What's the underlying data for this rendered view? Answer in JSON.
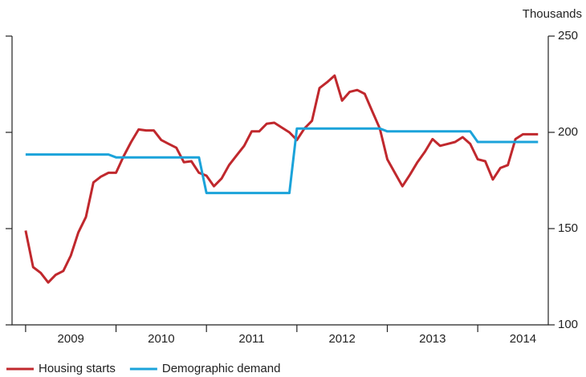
{
  "chart_data": {
    "type": "line",
    "ylabel": "Thousands",
    "x": [
      2009,
      2009.083,
      2009.167,
      2009.25,
      2009.333,
      2009.417,
      2009.5,
      2009.583,
      2009.667,
      2009.75,
      2009.833,
      2009.917,
      2010,
      2010.083,
      2010.167,
      2010.25,
      2010.333,
      2010.417,
      2010.5,
      2010.583,
      2010.667,
      2010.75,
      2010.833,
      2010.917,
      2011,
      2011.083,
      2011.167,
      2011.25,
      2011.333,
      2011.417,
      2011.5,
      2011.583,
      2011.667,
      2011.75,
      2011.833,
      2011.917,
      2012,
      2012.083,
      2012.167,
      2012.25,
      2012.333,
      2012.417,
      2012.5,
      2012.583,
      2012.667,
      2012.75,
      2012.833,
      2012.917,
      2013,
      2013.083,
      2013.167,
      2013.25,
      2013.333,
      2013.417,
      2013.5,
      2013.583,
      2013.667,
      2013.75,
      2013.833,
      2013.917,
      2014,
      2014.083,
      2014.167,
      2014.25,
      2014.333,
      2014.417,
      2014.5,
      2014.583,
      2014.667
    ],
    "series": [
      {
        "name": "Housing starts",
        "color": "#c0282d",
        "values": [
          149,
          130,
          127,
          122,
          126,
          128,
          136,
          148,
          156,
          174,
          177,
          179,
          179,
          187.5,
          195,
          201.5,
          201,
          201,
          196,
          194,
          192,
          184.5,
          185,
          179,
          177.5,
          172,
          176,
          183,
          188,
          193,
          200.5,
          200.5,
          204.5,
          205,
          202.5,
          200,
          196,
          202,
          206,
          223,
          226,
          229.5,
          216.5,
          221,
          222,
          220,
          211,
          202,
          186,
          179,
          172,
          178,
          184.5,
          190,
          196.5,
          193,
          194,
          195,
          197.5,
          194,
          186,
          185,
          175.5,
          181.5,
          183,
          196.5,
          199,
          199,
          199
        ]
      },
      {
        "name": "Demographic demand",
        "color": "#1ba3da",
        "values": [
          188.5,
          188.5,
          188.5,
          188.5,
          188.5,
          188.5,
          188.5,
          188.5,
          188.5,
          188.5,
          188.5,
          188.5,
          187,
          187,
          187,
          187,
          187,
          187,
          187,
          187,
          187,
          187,
          187,
          187,
          168.5,
          168.5,
          168.5,
          168.5,
          168.5,
          168.5,
          168.5,
          168.5,
          168.5,
          168.5,
          168.5,
          168.5,
          202,
          202,
          202,
          202,
          202,
          202,
          202,
          202,
          202,
          202,
          202,
          202,
          200.5,
          200.5,
          200.5,
          200.5,
          200.5,
          200.5,
          200.5,
          200.5,
          200.5,
          200.5,
          200.5,
          200.5,
          195,
          195,
          195,
          195,
          195,
          195,
          195,
          195,
          195
        ]
      }
    ],
    "xlim": [
      2008.85,
      2014.78
    ],
    "xticks": [
      2009,
      2010,
      2011,
      2012,
      2013,
      2014
    ],
    "ylim": [
      100,
      250
    ],
    "yticks": [
      100,
      150,
      200,
      250
    ]
  }
}
